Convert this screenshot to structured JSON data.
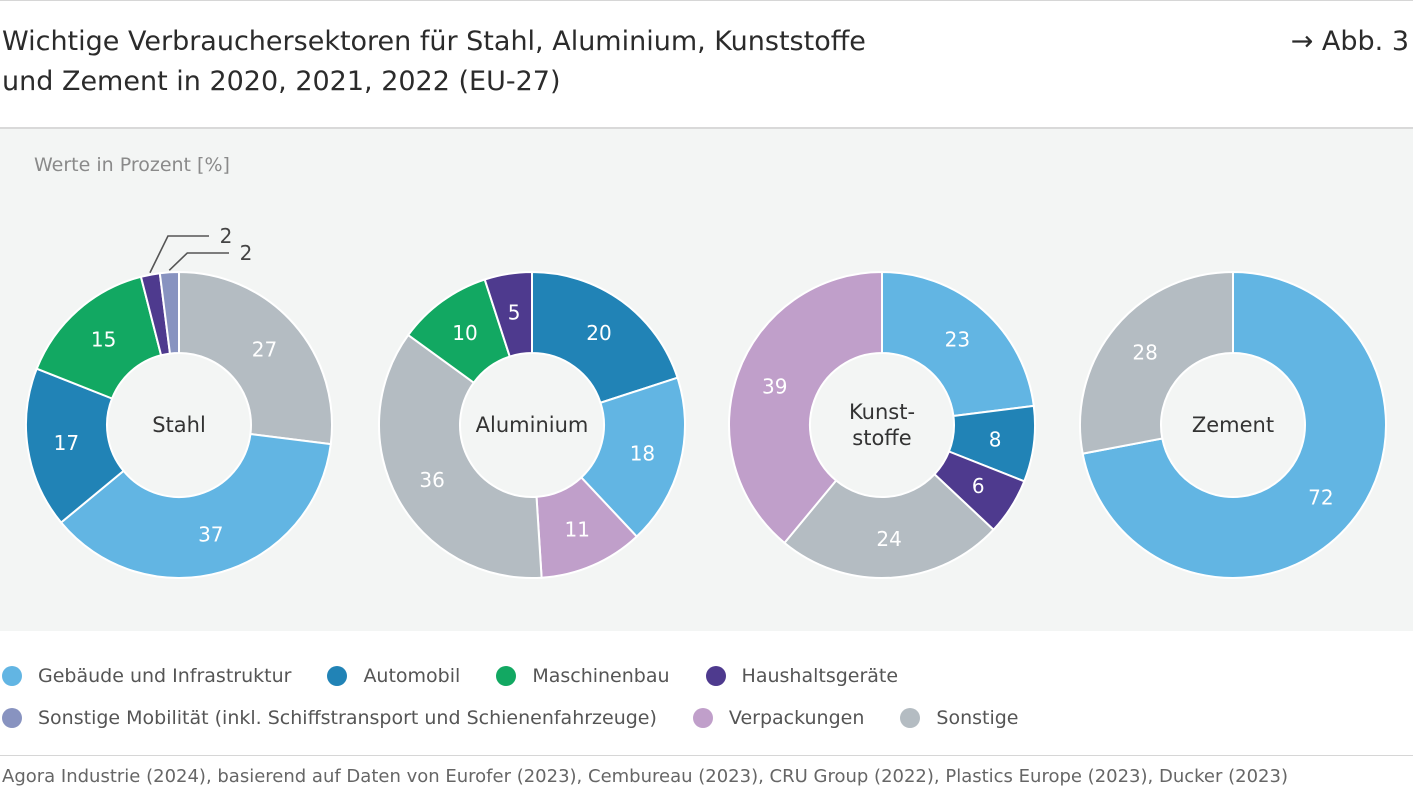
{
  "header": {
    "title_line1": "Wichtige Verbrauchersektoren für Stahl, Aluminium, Kunststoffe",
    "title_line2": "und Zement in 2020, 2021, 2022 (EU-27)",
    "figure_ref": "→ Abb. 3"
  },
  "units_label": "Werte in Prozent [%]",
  "source": "Agora Industrie (2024), basierend auf Daten von Eurofer (2023), Cembureau (2023), CRU Group (2022), Plastics Europe (2023), Ducker (2023)",
  "legend": {
    "rows": [
      [
        {
          "label": "Gebäude und Infrastruktur",
          "color": "#62b5e3"
        },
        {
          "label": "Automobil",
          "color": "#2183b6"
        },
        {
          "label": "Maschinenbau",
          "color": "#12a862"
        },
        {
          "label": "Haushaltsgeräte",
          "color": "#4e3a8e"
        }
      ],
      [
        {
          "label": "Sonstige Mobilität (inkl. Schiffstransport und Schienenfahrzeuge)",
          "color": "#8893c0"
        },
        {
          "label": "Verpackungen",
          "color": "#c09fca"
        },
        {
          "label": "Sonstige",
          "color": "#b4bcc2"
        }
      ]
    ]
  },
  "chart_data": [
    {
      "type": "pie",
      "title": "Stahl",
      "slices": [
        {
          "label": "Sonstige",
          "value": 27,
          "color": "#b4bcc2"
        },
        {
          "label": "Gebäude und Infrastruktur",
          "value": 37,
          "color": "#62b5e3"
        },
        {
          "label": "Automobil",
          "value": 17,
          "color": "#2183b6"
        },
        {
          "label": "Maschinenbau",
          "value": 15,
          "color": "#12a862"
        },
        {
          "label": "Haushaltsgeräte",
          "value": 2,
          "color": "#4e3a8e"
        },
        {
          "label": "Sonstige Mobilität (inkl. Schiffstransport und Schienenfahrzeuge)",
          "value": 2,
          "color": "#8893c0"
        }
      ]
    },
    {
      "type": "pie",
      "title": "Aluminium",
      "slices": [
        {
          "label": "Automobil",
          "value": 20,
          "color": "#2183b6"
        },
        {
          "label": "Gebäude und Infrastruktur",
          "value": 18,
          "color": "#62b5e3"
        },
        {
          "label": "Verpackungen",
          "value": 11,
          "color": "#c09fca"
        },
        {
          "label": "Sonstige",
          "value": 36,
          "color": "#b4bcc2"
        },
        {
          "label": "Maschinenbau",
          "value": 10,
          "color": "#12a862"
        },
        {
          "label": "Haushaltsgeräte",
          "value": 5,
          "color": "#4e3a8e"
        }
      ]
    },
    {
      "type": "pie",
      "title": "Kunst-\nstoffe",
      "slices": [
        {
          "label": "Gebäude und Infrastruktur",
          "value": 23,
          "color": "#62b5e3"
        },
        {
          "label": "Automobil",
          "value": 8,
          "color": "#2183b6"
        },
        {
          "label": "Haushaltsgeräte",
          "value": 6,
          "color": "#4e3a8e"
        },
        {
          "label": "Sonstige",
          "value": 24,
          "color": "#b4bcc2"
        },
        {
          "label": "Verpackungen",
          "value": 39,
          "color": "#c09fca"
        }
      ]
    },
    {
      "type": "pie",
      "title": "Zement",
      "slices": [
        {
          "label": "Gebäude und Infrastruktur",
          "value": 72,
          "color": "#62b5e3"
        },
        {
          "label": "Sonstige",
          "value": 28,
          "color": "#b4bcc2"
        }
      ]
    }
  ]
}
